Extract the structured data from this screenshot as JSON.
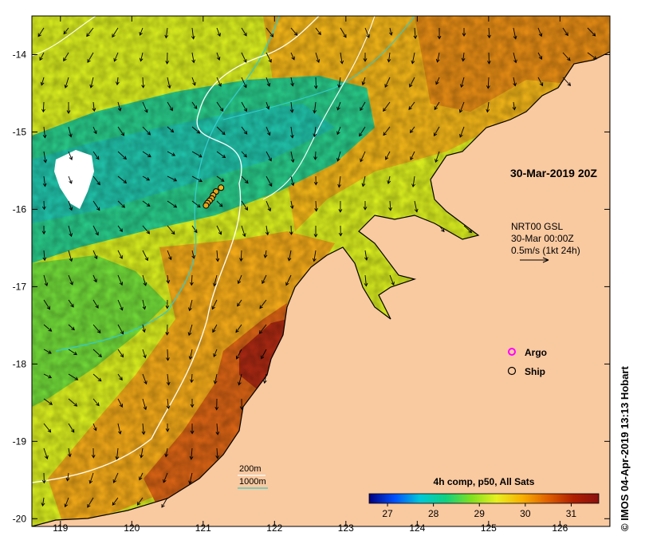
{
  "colors": {
    "land": "#f9c9a0",
    "coast": "#000000",
    "contour_200m": "#ffffff",
    "contour_1000m": "#33cccc",
    "argo": "#ff00ff",
    "ship": "#000000"
  },
  "map": {
    "lon_range": [
      118.6,
      126.7
    ],
    "lat_range": [
      -20.1,
      -13.5
    ],
    "lon_ticks": [
      119,
      120,
      121,
      122,
      123,
      124,
      125,
      126
    ],
    "lat_ticks": [
      -14,
      -15,
      -16,
      -17,
      -18,
      -19,
      -20
    ],
    "lon_tick_labels": [
      "119",
      "120",
      "121",
      "122",
      "123",
      "124",
      "125",
      "126"
    ],
    "lat_tick_labels": [
      "-14",
      "-15",
      "-16",
      "-17",
      "-18",
      "-19",
      "-20"
    ]
  },
  "annotations": {
    "timestamp": "30-Mar-2019 20Z",
    "current_source_line1": "NRT00 GSL",
    "current_source_line2": "30-Mar 00:00Z",
    "current_scale": "0.5m/s (1kt 24h)"
  },
  "legend": {
    "argo_label": "Argo",
    "ship_label": "Ship",
    "contour_200_label": "200m",
    "contour_1000_label": "1000m"
  },
  "colorbar": {
    "title": "4h comp, p50, All Sats",
    "range": [
      26.6,
      31.6
    ],
    "ticks": [
      "27",
      "28",
      "29",
      "30",
      "31"
    ],
    "tick_values": [
      27,
      28,
      29,
      30,
      31
    ],
    "stops": [
      "#00007f",
      "#0050ff",
      "#00c8d8",
      "#10d080",
      "#80e020",
      "#e8f020",
      "#f8b000",
      "#e06000",
      "#b02000",
      "#8a1010"
    ]
  },
  "credit": "© IMOS 04-Apr-2019 13:13 Hobart",
  "ship_track": [
    {
      "lon": 121.25,
      "lat": -15.72
    },
    {
      "lon": 121.18,
      "lat": -15.77
    },
    {
      "lon": 121.14,
      "lat": -15.82
    },
    {
      "lon": 121.12,
      "lat": -15.86
    },
    {
      "lon": 121.09,
      "lat": -15.89
    },
    {
      "lon": 121.06,
      "lat": -15.92
    },
    {
      "lon": 121.04,
      "lat": -15.95
    }
  ]
}
